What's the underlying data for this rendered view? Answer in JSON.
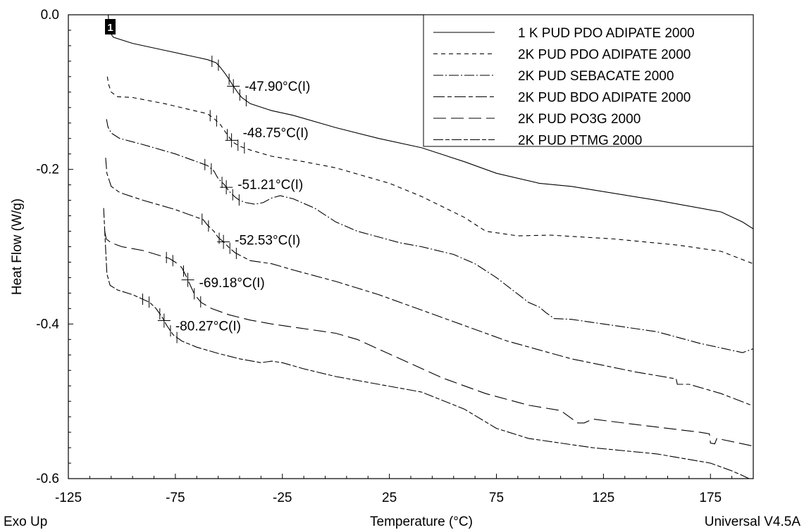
{
  "chart_data": {
    "type": "line",
    "title": "",
    "xlabel": "Temperature (°C)",
    "ylabel": "Heat Flow (W/g)",
    "xlim": [
      -125,
      195
    ],
    "ylim": [
      -0.6,
      0.0
    ],
    "x_ticks": [
      "-125",
      "-75",
      "-25",
      "25",
      "75",
      "125",
      "175"
    ],
    "y_ticks": [
      "0.0",
      "-0.2",
      "-0.4",
      "-0.6"
    ],
    "corner_left": "Exo Up",
    "corner_right": "Universal V4.5A",
    "marker_label": "1",
    "grid": false,
    "legend_position": "top-right",
    "series": [
      {
        "name": "1 K PUD PDO ADIPATE 2000",
        "dash": "none",
        "points": [
          [
            -106.4,
            0.0
          ],
          [
            -106,
            -0.012
          ],
          [
            -105,
            -0.025
          ],
          [
            -104,
            -0.029
          ],
          [
            -95,
            -0.037
          ],
          [
            -80,
            -0.046
          ],
          [
            -65,
            -0.055
          ],
          [
            -60,
            -0.058
          ],
          [
            -56,
            -0.062
          ],
          [
            -54,
            -0.068
          ],
          [
            -52,
            -0.075
          ],
          [
            -50,
            -0.083
          ],
          [
            -48,
            -0.092
          ],
          [
            -46,
            -0.1
          ],
          [
            -44,
            -0.107
          ],
          [
            -40,
            -0.115
          ],
          [
            -30,
            -0.124
          ],
          [
            -20,
            -0.13
          ],
          [
            0,
            -0.146
          ],
          [
            20,
            -0.16
          ],
          [
            40,
            -0.172
          ],
          [
            60,
            -0.19
          ],
          [
            75,
            -0.205
          ],
          [
            95,
            -0.218
          ],
          [
            110,
            -0.222
          ],
          [
            150,
            -0.24
          ],
          [
            180,
            -0.255
          ],
          [
            190,
            -0.268
          ],
          [
            195,
            -0.277
          ]
        ],
        "transition": {
          "x": -47.9,
          "y": -0.092,
          "label": "-47.90°C(I)"
        }
      },
      {
        "name": "2K PUD PDO ADIPATE 2000",
        "dash": "6,5",
        "points": [
          [
            -106.8,
            -0.08
          ],
          [
            -106.2,
            -0.09
          ],
          [
            -105,
            -0.1
          ],
          [
            -102,
            -0.106
          ],
          [
            -95,
            -0.107
          ],
          [
            -80,
            -0.115
          ],
          [
            -60,
            -0.128
          ],
          [
            -57,
            -0.134
          ],
          [
            -54,
            -0.142
          ],
          [
            -52,
            -0.15
          ],
          [
            -50,
            -0.158
          ],
          [
            -48,
            -0.165
          ],
          [
            -45,
            -0.17
          ],
          [
            -40,
            -0.175
          ],
          [
            -30,
            -0.183
          ],
          [
            -15,
            -0.19
          ],
          [
            0,
            -0.198
          ],
          [
            25,
            -0.218
          ],
          [
            40,
            -0.235
          ],
          [
            60,
            -0.262
          ],
          [
            70,
            -0.28
          ],
          [
            85,
            -0.286
          ],
          [
            100,
            -0.285
          ],
          [
            130,
            -0.29
          ],
          [
            160,
            -0.298
          ],
          [
            180,
            -0.306
          ],
          [
            195,
            -0.322
          ]
        ],
        "transition": {
          "x": -48.75,
          "y": -0.152,
          "label": "-48.75°C(I)"
        }
      },
      {
        "name": "2K PUD SEBACATE 2000",
        "dash": "14,3,2,3",
        "points": [
          [
            -107.2,
            -0.135
          ],
          [
            -106.5,
            -0.145
          ],
          [
            -105,
            -0.153
          ],
          [
            -101,
            -0.16
          ],
          [
            -90,
            -0.168
          ],
          [
            -75,
            -0.18
          ],
          [
            -60,
            -0.195
          ],
          [
            -57,
            -0.202
          ],
          [
            -55,
            -0.212
          ],
          [
            -52,
            -0.22
          ],
          [
            -50,
            -0.228
          ],
          [
            -47,
            -0.236
          ],
          [
            -45,
            -0.24
          ],
          [
            -42,
            -0.243
          ],
          [
            -38,
            -0.245
          ],
          [
            -34,
            -0.243
          ],
          [
            -30,
            -0.237
          ],
          [
            -26,
            -0.234
          ],
          [
            -20,
            -0.238
          ],
          [
            -10,
            -0.25
          ],
          [
            0,
            -0.268
          ],
          [
            10,
            -0.28
          ],
          [
            30,
            -0.295
          ],
          [
            40,
            -0.3
          ],
          [
            55,
            -0.31
          ],
          [
            65,
            -0.322
          ],
          [
            75,
            -0.34
          ],
          [
            90,
            -0.372
          ],
          [
            95,
            -0.378
          ],
          [
            98,
            -0.385
          ],
          [
            102,
            -0.393
          ],
          [
            110,
            -0.394
          ],
          [
            150,
            -0.41
          ],
          [
            170,
            -0.425
          ],
          [
            190,
            -0.437
          ],
          [
            193,
            -0.434
          ],
          [
            195,
            -0.432
          ]
        ],
        "transition": {
          "x": -51.21,
          "y": -0.219,
          "label": "-51.21°C(I)"
        }
      },
      {
        "name": "2K PUD BDO ADIPATE 2000",
        "dash": "16,4,6,4",
        "points": [
          [
            -107.6,
            -0.185
          ],
          [
            -107,
            -0.205
          ],
          [
            -105,
            -0.222
          ],
          [
            -101,
            -0.23
          ],
          [
            -90,
            -0.24
          ],
          [
            -75,
            -0.252
          ],
          [
            -62,
            -0.265
          ],
          [
            -60,
            -0.272
          ],
          [
            -57,
            -0.28
          ],
          [
            -55,
            -0.288
          ],
          [
            -52,
            -0.295
          ],
          [
            -50,
            -0.301
          ],
          [
            -47,
            -0.308
          ],
          [
            -40,
            -0.318
          ],
          [
            -30,
            -0.322
          ],
          [
            -20,
            -0.33
          ],
          [
            0,
            -0.345
          ],
          [
            20,
            -0.362
          ],
          [
            50,
            -0.392
          ],
          [
            80,
            -0.422
          ],
          [
            110,
            -0.445
          ],
          [
            140,
            -0.462
          ],
          [
            159,
            -0.471
          ],
          [
            159.5,
            -0.478
          ],
          [
            165,
            -0.478
          ],
          [
            180,
            -0.49
          ],
          [
            195,
            -0.506
          ]
        ],
        "transition": {
          "x": -52.53,
          "y": -0.291,
          "label": "-52.53°C(I)"
        }
      },
      {
        "name": "2K PUD PO3G 2000",
        "dash": "18,7",
        "points": [
          [
            -108,
            -0.28
          ],
          [
            -107.3,
            -0.29
          ],
          [
            -105,
            -0.295
          ],
          [
            -100,
            -0.3
          ],
          [
            -90,
            -0.305
          ],
          [
            -78,
            -0.315
          ],
          [
            -75,
            -0.32
          ],
          [
            -72,
            -0.327
          ],
          [
            -70,
            -0.338
          ],
          [
            -68,
            -0.35
          ],
          [
            -66,
            -0.362
          ],
          [
            -63,
            -0.372
          ],
          [
            -58,
            -0.38
          ],
          [
            -50,
            -0.388
          ],
          [
            -40,
            -0.395
          ],
          [
            -30,
            -0.4
          ],
          [
            -20,
            -0.404
          ],
          [
            0,
            -0.412
          ],
          [
            10,
            -0.42
          ],
          [
            30,
            -0.445
          ],
          [
            50,
            -0.47
          ],
          [
            70,
            -0.49
          ],
          [
            90,
            -0.505
          ],
          [
            105,
            -0.512
          ],
          [
            110,
            -0.522
          ],
          [
            113,
            -0.528
          ],
          [
            116,
            -0.528
          ],
          [
            120,
            -0.523
          ],
          [
            140,
            -0.53
          ],
          [
            170,
            -0.54
          ],
          [
            174.5,
            -0.542
          ],
          [
            175,
            -0.554
          ],
          [
            177,
            -0.555
          ],
          [
            178,
            -0.548
          ],
          [
            190,
            -0.555
          ],
          [
            195,
            -0.558
          ]
        ],
        "transition": {
          "x": -69.18,
          "y": -0.346,
          "label": "-69.18°C(I)"
        }
      },
      {
        "name": "2K PUD PTMG 2000",
        "dash": "14,3,6,3",
        "points": [
          [
            -108.5,
            -0.25
          ],
          [
            -107.8,
            -0.29
          ],
          [
            -107,
            -0.335
          ],
          [
            -105.5,
            -0.35
          ],
          [
            -102,
            -0.356
          ],
          [
            -95,
            -0.362
          ],
          [
            -87,
            -0.372
          ],
          [
            -84,
            -0.38
          ],
          [
            -81,
            -0.392
          ],
          [
            -79,
            -0.402
          ],
          [
            -76,
            -0.414
          ],
          [
            -72,
            -0.422
          ],
          [
            -65,
            -0.43
          ],
          [
            -55,
            -0.438
          ],
          [
            -45,
            -0.445
          ],
          [
            -35,
            -0.45
          ],
          [
            -30,
            -0.448
          ],
          [
            -25,
            -0.45
          ],
          [
            -15,
            -0.458
          ],
          [
            0,
            -0.468
          ],
          [
            20,
            -0.478
          ],
          [
            40,
            -0.488
          ],
          [
            60,
            -0.51
          ],
          [
            75,
            -0.535
          ],
          [
            90,
            -0.548
          ],
          [
            120,
            -0.56
          ],
          [
            150,
            -0.568
          ],
          [
            175,
            -0.58
          ],
          [
            185,
            -0.59
          ],
          [
            190,
            -0.596
          ],
          [
            193,
            -0.6
          ]
        ],
        "transition": {
          "x": -80.27,
          "y": -0.402,
          "label": "-80.27°C(I)"
        }
      }
    ]
  }
}
